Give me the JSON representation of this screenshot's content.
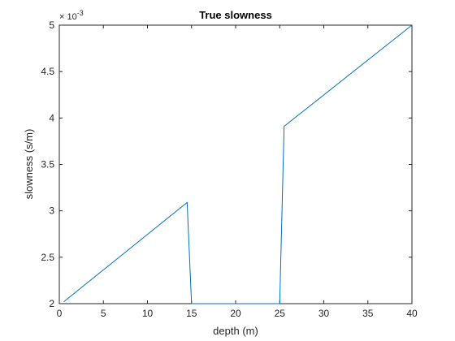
{
  "chart_data": {
    "type": "line",
    "title": "True slowness",
    "xlabel": "depth (m)",
    "ylabel": "slowness (s/m)",
    "xlim": [
      0,
      40
    ],
    "ylim": [
      0.002,
      0.005
    ],
    "y_scale_label": "× 10",
    "y_scale_exponent": "-3",
    "x_ticks": [
      "0",
      "5",
      "10",
      "15",
      "20",
      "25",
      "30",
      "35",
      "40"
    ],
    "y_ticks": [
      "2",
      "2.5",
      "3",
      "3.5",
      "4",
      "4.5",
      "5"
    ],
    "grid": false,
    "series": [
      {
        "color": "#0072BD",
        "x": [
          0.5,
          14.5,
          15.0,
          25.0,
          25.5,
          40.0
        ],
        "y": [
          0.00202,
          0.00309,
          0.002,
          0.002,
          0.00391,
          0.005
        ]
      }
    ]
  }
}
